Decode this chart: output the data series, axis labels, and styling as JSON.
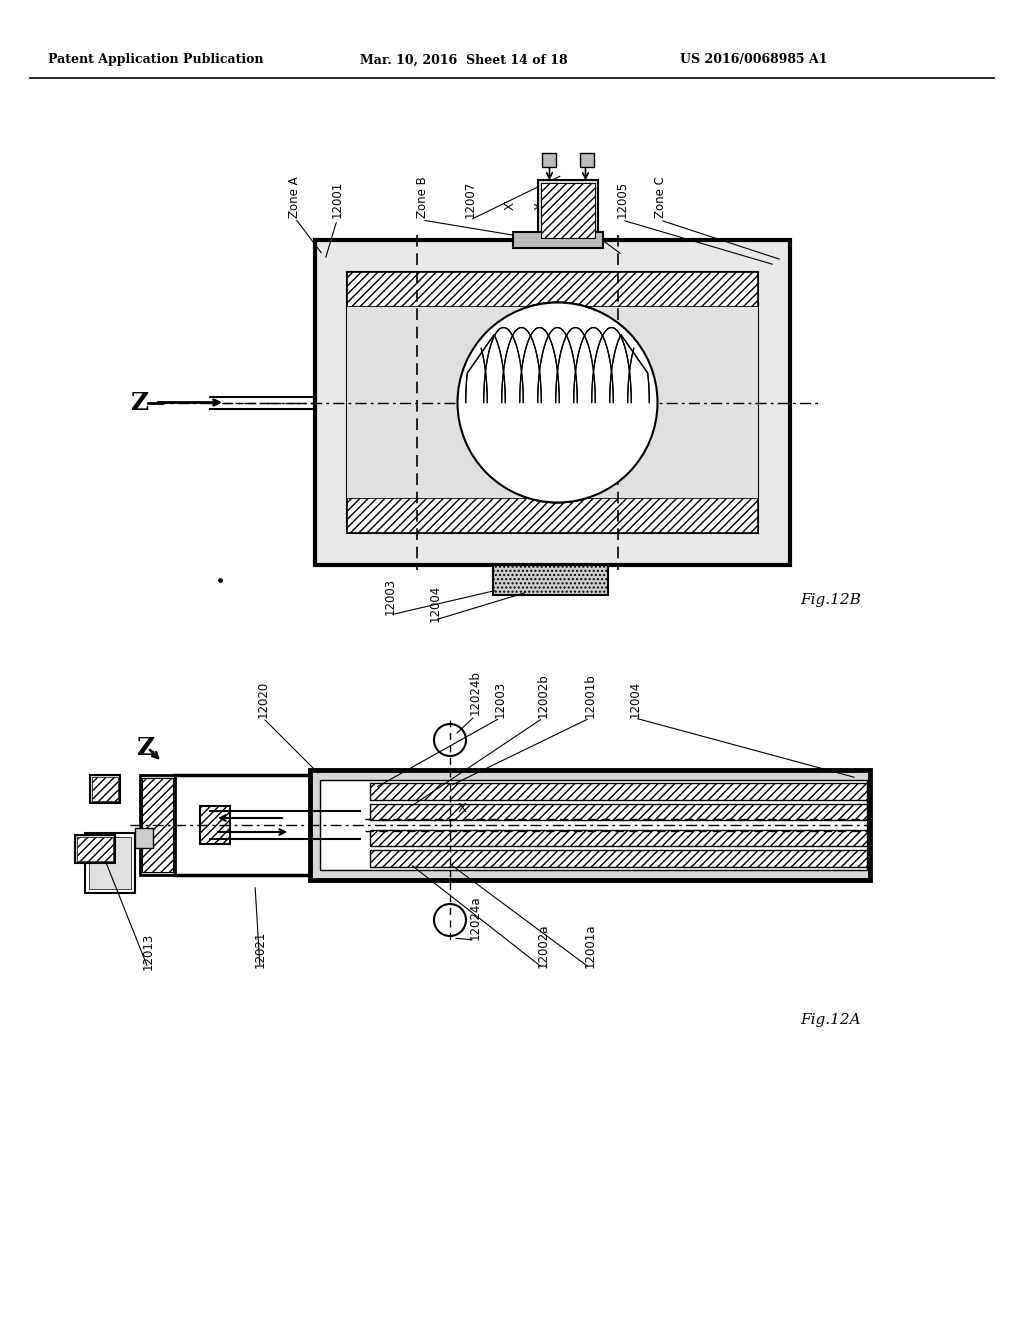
{
  "background_color": "#ffffff",
  "header_left": "Patent Application Publication",
  "header_mid": "Mar. 10, 2016  Sheet 14 of 18",
  "header_right": "US 2016/0068985 A1",
  "fig12b_label": "Fig.12B",
  "fig12a_label": "Fig.12A"
}
